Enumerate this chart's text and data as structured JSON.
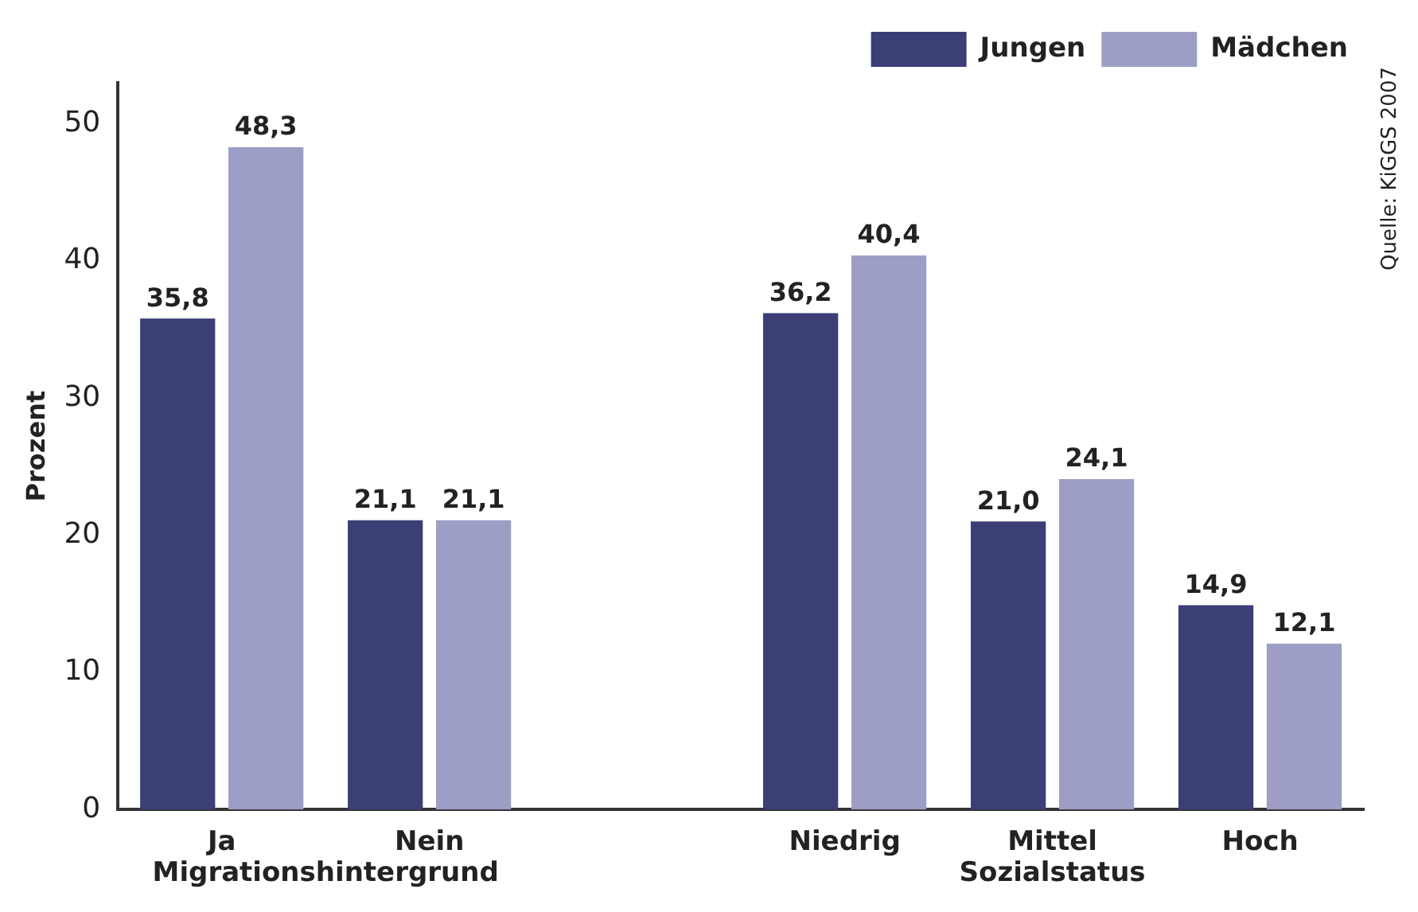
{
  "chart_data": {
    "type": "bar",
    "ylabel": "Prozent",
    "categories": [
      "Ja",
      "Nein",
      null,
      "Niedrig",
      "Mittel",
      "Hoch"
    ],
    "series": [
      {
        "name": "Jungen",
        "color": "#3b3f76",
        "values": [
          35.8,
          21.1,
          null,
          36.2,
          21.0,
          14.9
        ],
        "value_labels": [
          "35,8",
          "21,1",
          null,
          "36,2",
          "21,0",
          "14,9"
        ]
      },
      {
        "name": "Mädchen",
        "color": "#9c9ec6",
        "values": [
          48.3,
          21.1,
          null,
          40.4,
          24.1,
          12.1
        ],
        "value_labels": [
          "48,3",
          "21,1",
          null,
          "40,4",
          "24,1",
          "12,1"
        ]
      }
    ],
    "ylim": [
      0,
      53
    ],
    "yticks": [
      0,
      10,
      20,
      30,
      40,
      50
    ],
    "grid": false,
    "legend": "top right",
    "annotations": [
      "Migrationshintergrund",
      "Sozialstatus",
      "Quelle: KiGGS 2007"
    ]
  }
}
